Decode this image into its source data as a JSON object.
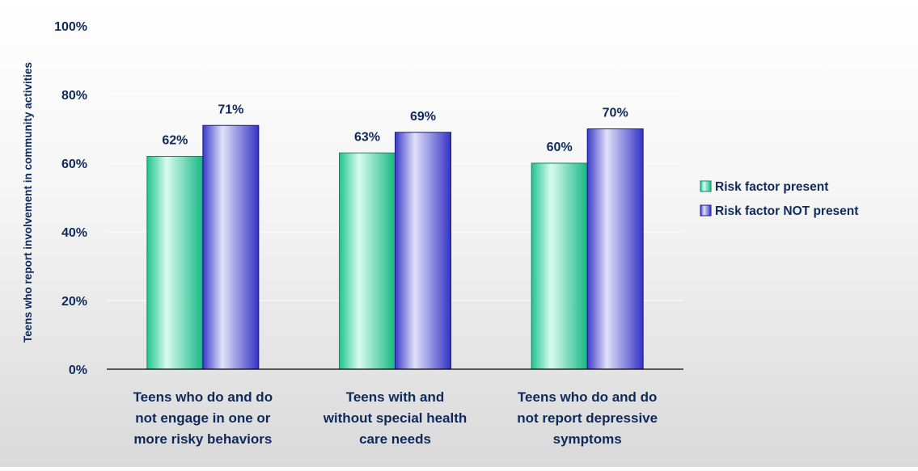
{
  "chart_data": {
    "type": "bar",
    "title": "",
    "xlabel": "",
    "ylabel": "Teens who report involvement in community activities",
    "ylim": [
      0,
      100
    ],
    "yticks": [
      "0%",
      "20%",
      "40%",
      "60%",
      "80%",
      "100%"
    ],
    "ytick_values": [
      0,
      20,
      40,
      60,
      80,
      100
    ],
    "grid": true,
    "legend_position": "right",
    "categories": [
      [
        "Teens who do and do",
        "not engage in one or",
        "more risky behaviors"
      ],
      [
        "Teens with and",
        "without special health",
        "care needs"
      ],
      [
        "Teens who do and do",
        "not report depressive",
        "symptoms"
      ]
    ],
    "series": [
      {
        "name": "Risk factor present",
        "values": [
          62,
          63,
          60
        ],
        "labels": [
          "62%",
          "63%",
          "60%"
        ],
        "color": "#3ad6a6"
      },
      {
        "name": "Risk factor NOT present",
        "values": [
          71,
          69,
          70
        ],
        "labels": [
          "71%",
          "69%",
          "70%"
        ],
        "color": "#7777d9"
      }
    ],
    "colors": {
      "text": "#0f2a5a",
      "grid": "#ffffff",
      "axis": "#000000"
    }
  }
}
